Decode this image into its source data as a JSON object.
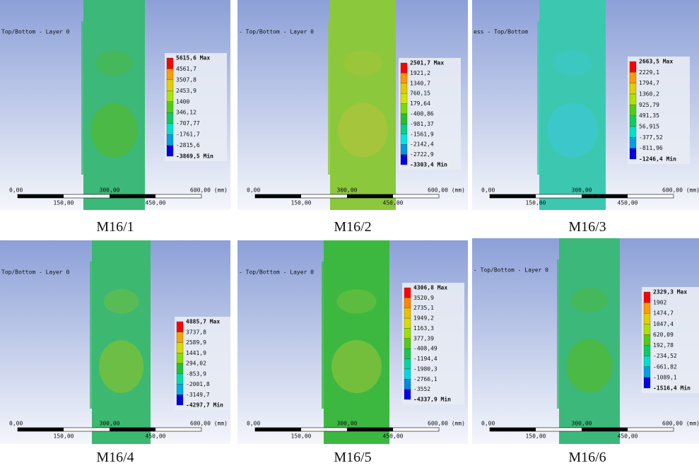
{
  "panels": [
    {
      "caption": "M16/1",
      "header": "Top/Bottom - Layer 0",
      "legend": [
        "5615,6 Max",
        "4561,7",
        "3507,8",
        "2453,9",
        "1400",
        "346,12",
        "-707,77",
        "-1761,7",
        "-2815,6",
        "-3869,5 Min"
      ],
      "scale": {
        "zero": "0,00",
        "mid": "300,00",
        "end": "600,00 (mm)",
        "q1": "150,00",
        "q3": "450,00"
      }
    },
    {
      "caption": "M16/2",
      "header": "- Top/Bottom - Layer 0",
      "legend": [
        "2501,7 Max",
        "1921,2",
        "1340,7",
        "760,15",
        "179,64",
        "-400,86",
        "-981,37",
        "-1561,9",
        "-2142,4",
        "-2722,9",
        "-3303,4 Min"
      ],
      "scale": {
        "zero": "0,00",
        "mid": "300,00",
        "end": "600,00 (mm)",
        "q1": "150,00",
        "q3": "450,00"
      }
    },
    {
      "caption": "M16/3",
      "header": "ess - Top/Bottom",
      "legend": [
        "2663,5 Max",
        "2229,1",
        "1794,7",
        "1360,2",
        "925,79",
        "491,35",
        "56,915",
        "-377,52",
        "-811,96",
        "-1246,4 Min"
      ],
      "scale": {
        "zero": "0,00",
        "mid": "300,00",
        "end": "600,00 (mm)",
        "q1": "150,00",
        "q3": "450,00"
      }
    },
    {
      "caption": "M16/4",
      "header": "Top/Bottom - Layer 0",
      "legend": [
        "4885,7 Max",
        "3737,8",
        "2589,9",
        "1441,9",
        "294,02",
        "-853,9",
        "-2001,8",
        "-3149,7",
        "-4297,7 Min"
      ],
      "scale": {
        "zero": "0,00",
        "mid": "300,00",
        "end": "600,00 (mm)",
        "q1": "150,00",
        "q3": "450,00"
      }
    },
    {
      "caption": "M16/5",
      "header": "- Top/Bottom - Layer 0",
      "legend": [
        "4306,8 Max",
        "3520,9",
        "2735,1",
        "1949,2",
        "1163,3",
        "377,39",
        "-408,49",
        "-1194,4",
        "-1980,3",
        "-2766,1",
        "-3552",
        "-4337,9 Min"
      ],
      "scale": {
        "zero": "0,00",
        "mid": "300,00",
        "end": "600,00 (mm)",
        "q1": "150,00",
        "q3": "450,00"
      }
    },
    {
      "caption": "M16/6",
      "header": "- Top/Bottom - Layer 0",
      "legend": [
        "2329,3 Max",
        "1902",
        "1474,7",
        "1047,4",
        "620,09",
        "192,78",
        "-234,52",
        "-661,82",
        "-1089,1",
        "-1516,4 Min"
      ],
      "scale": {
        "zero": "0,00",
        "mid": "300,00",
        "end": "600,00 (mm)",
        "q1": "150,00",
        "q3": "450,00"
      }
    }
  ]
}
